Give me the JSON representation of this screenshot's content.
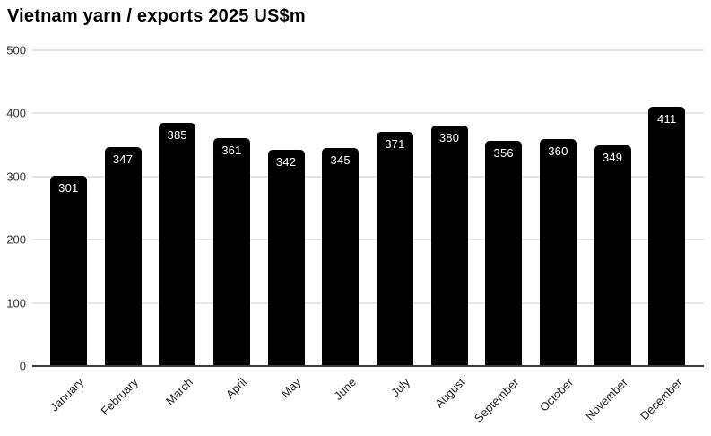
{
  "chart_data": {
    "type": "bar",
    "title": "Vietnam yarn / exports 2025 US$m",
    "categories": [
      "January",
      "February",
      "March",
      "April",
      "May",
      "June",
      "July",
      "August",
      "September",
      "October",
      "November",
      "December"
    ],
    "values": [
      301,
      347,
      385,
      361,
      342,
      345,
      371,
      380,
      356,
      360,
      349,
      411
    ],
    "xlabel": "",
    "ylabel": "",
    "ylim": [
      0,
      500
    ],
    "yticks": [
      0,
      100,
      200,
      300,
      400,
      500
    ],
    "grid": true,
    "legend": "none",
    "colors": {
      "bar": "#000000",
      "bar_label": "#ffffff",
      "axis_text": "#333333",
      "gridline": "#e6e6e6",
      "baseline": "#3a3a3a",
      "title": "#000000",
      "background": "#ffffff"
    }
  }
}
